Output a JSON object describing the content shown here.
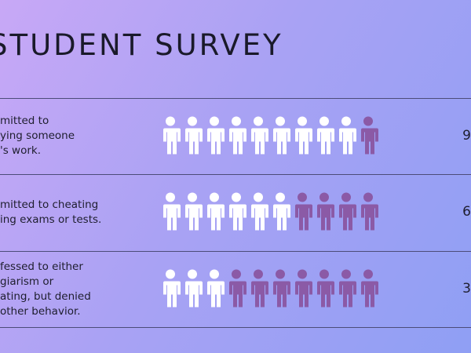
{
  "title": "STUDENT SURVEY",
  "rows": [
    {
      "lines": [
        "mitted to",
        "ying someone",
        "'s work."
      ],
      "highlighted": 9,
      "total": 10,
      "figure": "9"
    },
    {
      "lines": [
        "mitted to cheating",
        "ing exams or tests."
      ],
      "highlighted": 6,
      "total": 10,
      "figure": "6"
    },
    {
      "lines": [
        "fessed to either",
        "giarism or",
        "ating, but denied",
        "other behavior."
      ],
      "highlighted": 3,
      "total": 10,
      "figure": "3"
    }
  ],
  "colors": {
    "highlighted": "#ffffff",
    "rest": "#8b5aa6"
  }
}
